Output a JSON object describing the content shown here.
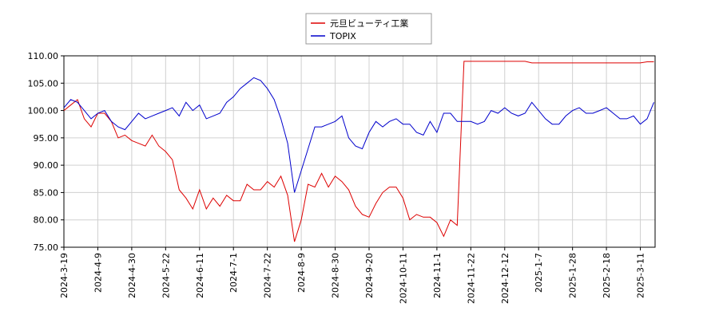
{
  "chart_data": {
    "type": "line",
    "categories": [
      "2024-3-19",
      null,
      null,
      null,
      null,
      "2024-4-9",
      null,
      null,
      null,
      null,
      "2024-4-30",
      null,
      null,
      null,
      null,
      "2024-5-22",
      null,
      null,
      null,
      null,
      "2024-6-11",
      null,
      null,
      null,
      null,
      "2024-7-1",
      null,
      null,
      null,
      null,
      "2024-7-22",
      null,
      null,
      null,
      null,
      "2024-8-9",
      null,
      null,
      null,
      null,
      "2024-8-30",
      null,
      null,
      null,
      null,
      "2024-9-20",
      null,
      null,
      null,
      null,
      "2024-10-11",
      null,
      null,
      null,
      null,
      "2024-11-1",
      null,
      null,
      null,
      null,
      "2024-11-22",
      null,
      null,
      null,
      null,
      "2024-12-12",
      null,
      null,
      null,
      null,
      "2025-1-7",
      null,
      null,
      null,
      null,
      "2025-1-28",
      null,
      null,
      null,
      null,
      "2025-2-18",
      null,
      null,
      null,
      null,
      "2025-3-11",
      null,
      null
    ],
    "series": [
      {
        "name": "元旦ビューティ工業",
        "color": "#dd0000",
        "values": [
          100,
          101,
          102,
          98.5,
          97,
          99.5,
          99.5,
          98,
          95,
          95.5,
          94.5,
          94,
          93.5,
          95.5,
          93.5,
          92.5,
          91,
          85.5,
          84,
          82,
          85.5,
          82,
          84,
          82.5,
          84.5,
          83.5,
          83.5,
          86.5,
          85.5,
          85.5,
          87,
          86,
          88,
          84.5,
          76,
          80,
          86.5,
          86,
          88.5,
          86,
          88,
          87,
          85.5,
          82.5,
          81,
          80.5,
          83,
          85,
          86,
          86,
          84,
          80,
          81,
          80.5,
          80.5,
          79.5,
          77,
          80,
          79,
          109,
          109,
          109,
          109,
          109,
          109,
          109,
          109,
          109,
          109,
          108.7,
          108.7,
          108.7,
          108.7,
          108.7,
          108.7,
          108.7,
          108.7,
          108.7,
          108.7,
          108.7,
          108.7,
          108.7,
          108.7,
          108.7,
          108.7,
          108.7,
          108.9,
          108.9
        ]
      },
      {
        "name": "TOPIX",
        "color": "#0000cc",
        "values": [
          100.5,
          102,
          101.5,
          100,
          98.5,
          99.5,
          100,
          98,
          97,
          96.5,
          98,
          99.5,
          98.5,
          99,
          99.5,
          100,
          100.5,
          99,
          101.5,
          100,
          101,
          98.5,
          99,
          99.5,
          101.5,
          102.5,
          104,
          105,
          106,
          105.5,
          104,
          102,
          98.5,
          94,
          85,
          89,
          93,
          97,
          97,
          97.5,
          98,
          99,
          95,
          93.5,
          93,
          96,
          98,
          97,
          98,
          98.5,
          97.5,
          97.5,
          96,
          95.5,
          98,
          96,
          99.5,
          99.5,
          98,
          98,
          98,
          97.5,
          98,
          100,
          99.5,
          100.5,
          99.5,
          99,
          99.5,
          101.5,
          100,
          98.5,
          97.5,
          97.5,
          99,
          100,
          100.5,
          99.5,
          99.5,
          100,
          100.5,
          99.5,
          98.5,
          98.5,
          99,
          97.5,
          98.5,
          101.5
        ]
      }
    ],
    "ylim": [
      75,
      110
    ],
    "yticks": [
      {
        "value": 75,
        "label": "75.00"
      },
      {
        "value": 80,
        "label": "80.00"
      },
      {
        "value": 85,
        "label": "85.00"
      },
      {
        "value": 90,
        "label": "90.00"
      },
      {
        "value": 95,
        "label": "95.00"
      },
      {
        "value": 100,
        "label": "100.00"
      },
      {
        "value": 105,
        "label": "105.00"
      },
      {
        "value": 110,
        "label": "110.00"
      }
    ],
    "grid": true
  }
}
